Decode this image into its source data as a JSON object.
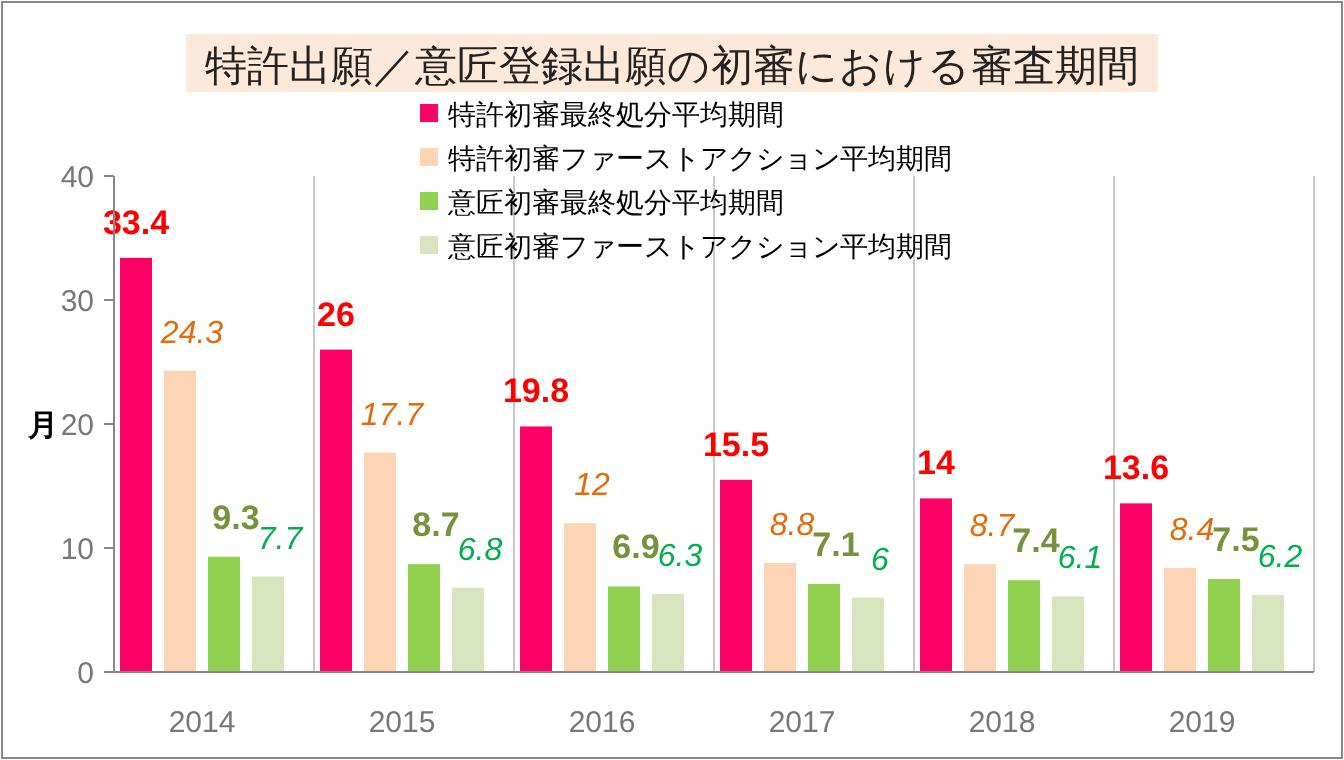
{
  "chart_data": {
    "type": "bar",
    "title": "特許出願／意匠登録出願の初審における審査期間",
    "ylabel": "月",
    "categories": [
      "2014",
      "2015",
      "2016",
      "2017",
      "2018",
      "2019"
    ],
    "series": [
      {
        "name": "特許初審最終処分平均期間",
        "color": "#ff0066",
        "values": [
          33.4,
          26,
          19.8,
          15.5,
          14,
          13.6
        ]
      },
      {
        "name": "特許初審ファーストアクション平均期間",
        "color": "#fcd5b5",
        "values": [
          24.3,
          17.7,
          12,
          8.8,
          8.7,
          8.4
        ]
      },
      {
        "name": "意匠初審最終処分平均期間",
        "color": "#92d050",
        "values": [
          9.3,
          8.7,
          6.9,
          7.1,
          7.4,
          7.5
        ]
      },
      {
        "name": "意匠初審ファーストアクション平均期間",
        "color": "#d7e4bd",
        "values": [
          7.7,
          6.8,
          6.3,
          6,
          6.1,
          6.2
        ]
      }
    ],
    "ylim": [
      0,
      40
    ],
    "yticks": [
      0,
      10,
      20,
      30,
      40
    ],
    "grid": "x",
    "legend": "top",
    "data_labels": true
  }
}
